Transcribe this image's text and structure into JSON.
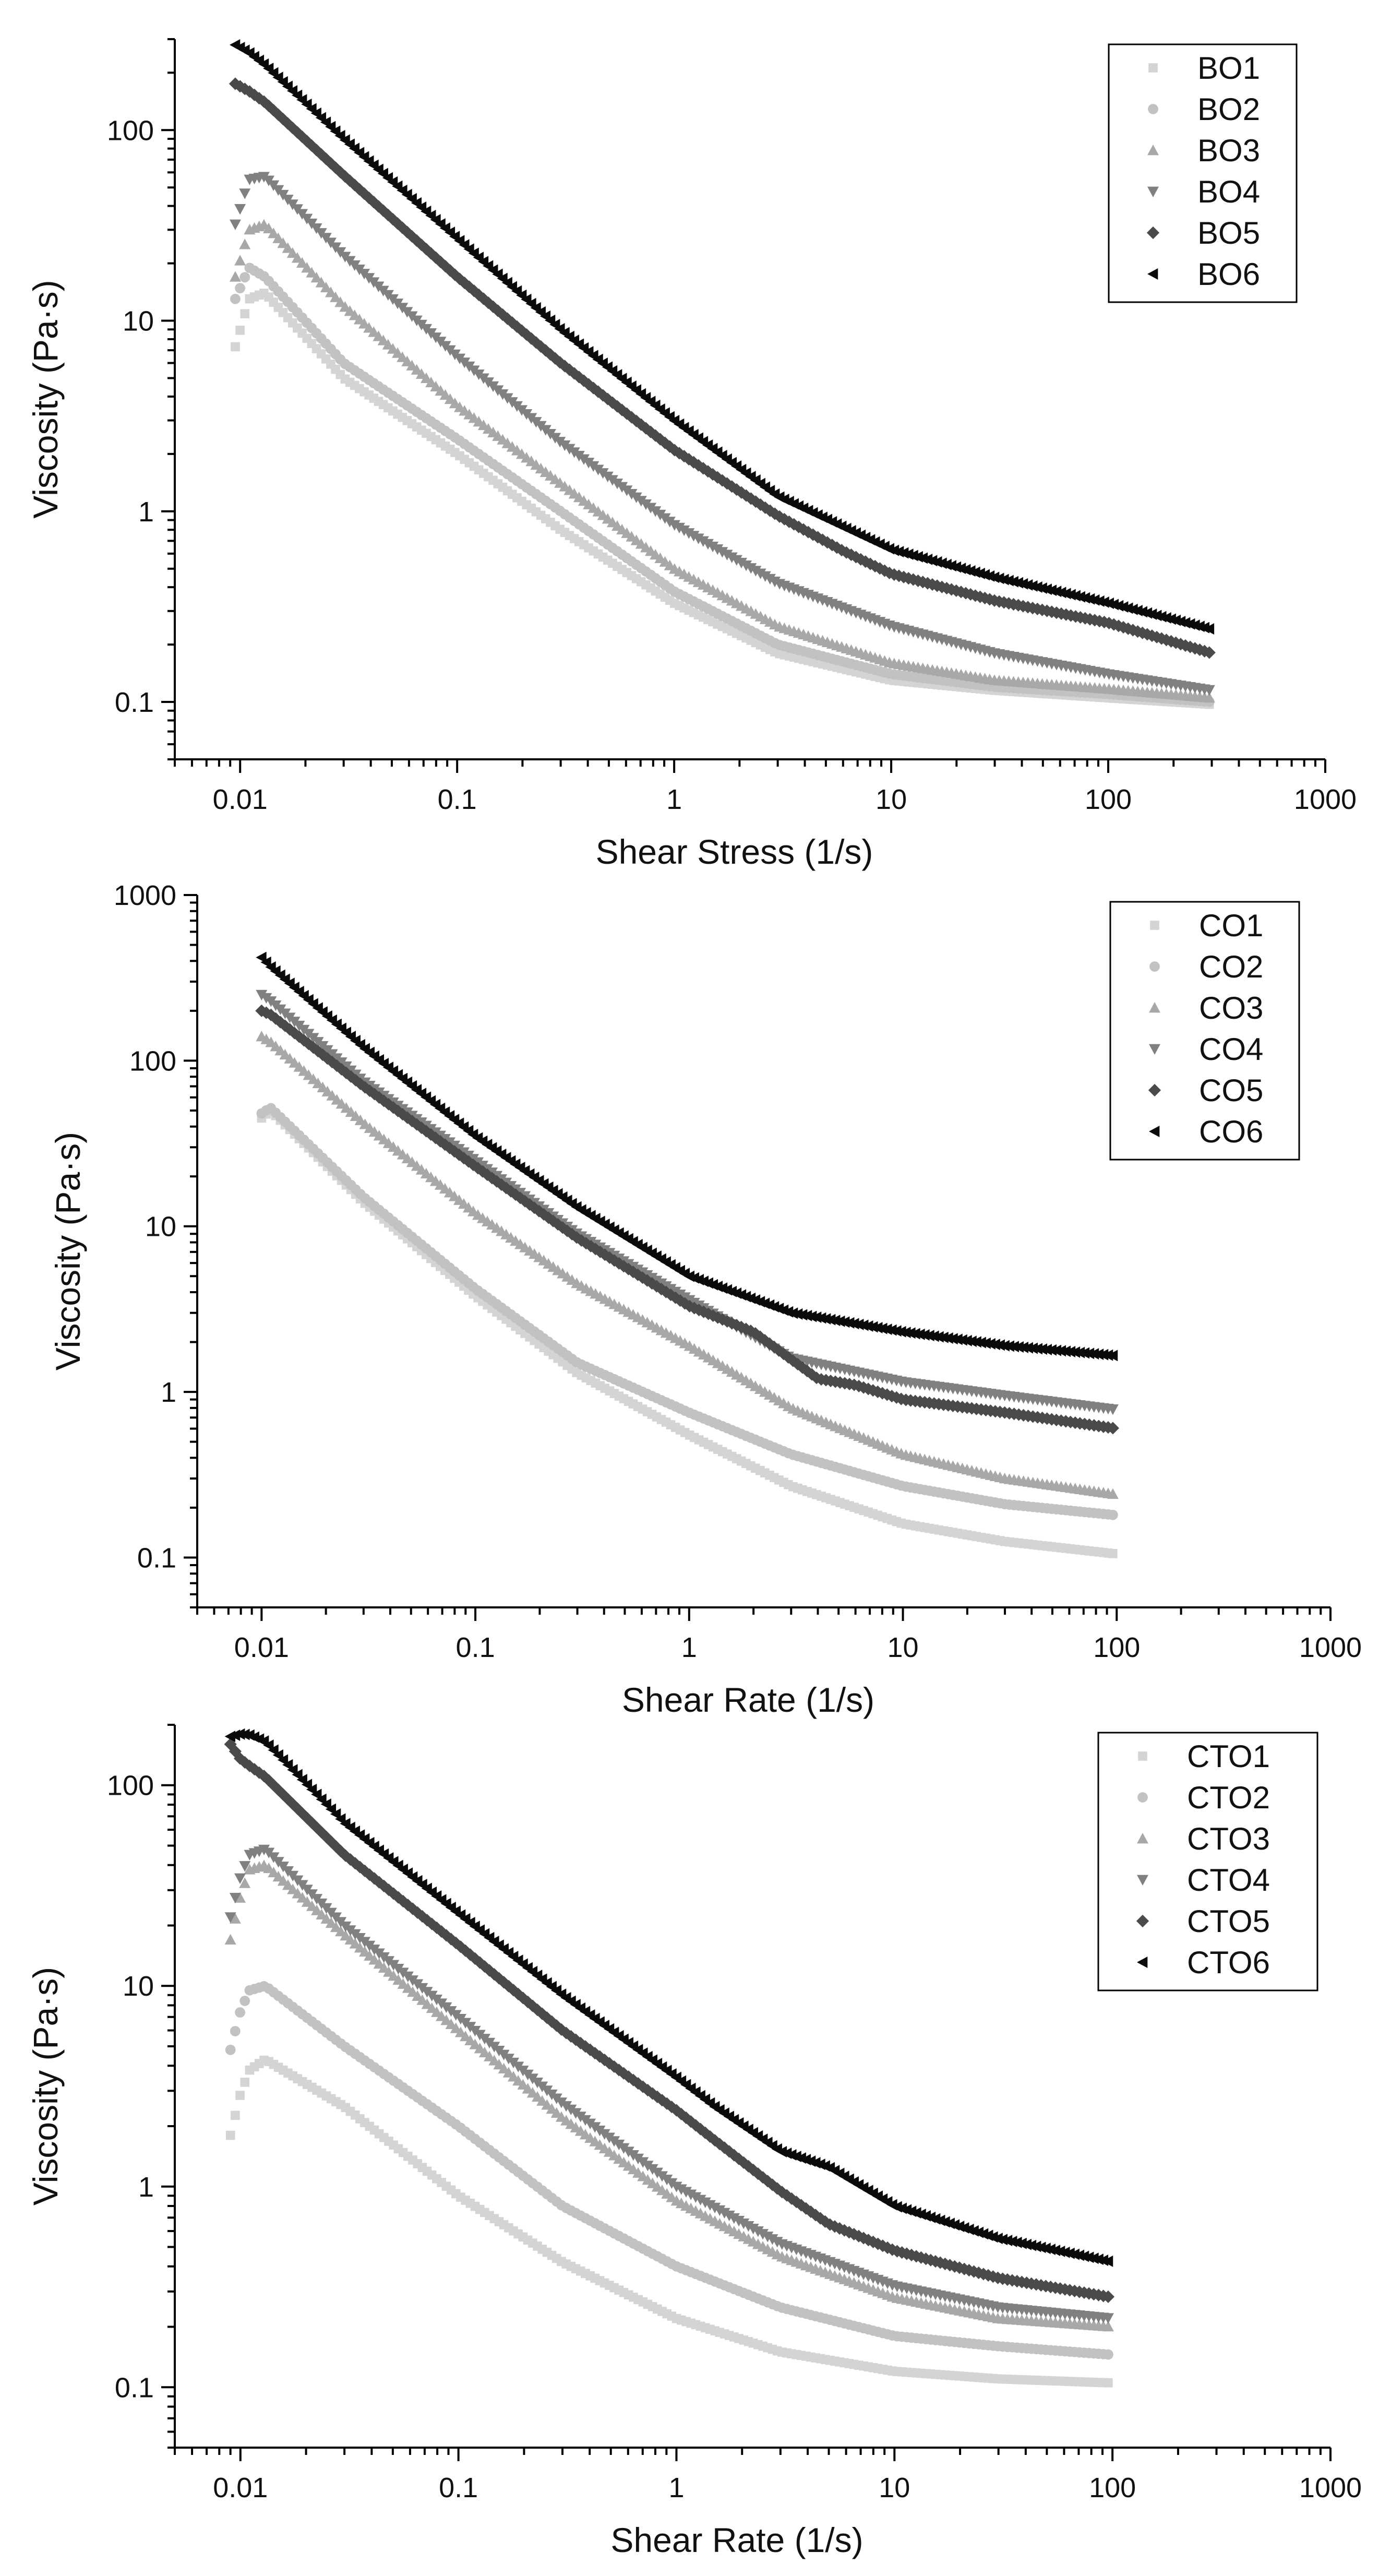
{
  "chart_data": [
    {
      "type": "scatter",
      "title": "",
      "xlabel": "Shear Stress (1/s)",
      "ylabel": "Viscosity (Pa·s)",
      "xscale": "log",
      "yscale": "log",
      "xlim": [
        0.005,
        1000
      ],
      "ylim": [
        0.05,
        300
      ],
      "xticks": [
        0.01,
        0.1,
        1,
        10,
        100,
        1000
      ],
      "xtick_labels": [
        "0.01",
        "0.1",
        "1",
        "10",
        "100",
        "1000"
      ],
      "yticks": [
        0.1,
        1,
        10,
        100
      ],
      "ytick_labels": [
        "0.1",
        "1",
        "10",
        "100"
      ],
      "legend_position": "top-right",
      "series": [
        {
          "name": "BO1",
          "marker": "square",
          "color": "#d4d4d4",
          "x": [
            0.0095,
            0.011,
            0.013,
            0.03,
            0.1,
            0.3,
            1,
            3,
            10,
            30,
            100,
            300
          ],
          "y": [
            7.3,
            13,
            14,
            5,
            2,
            0.8,
            0.33,
            0.18,
            0.13,
            0.115,
            0.105,
            0.097
          ]
        },
        {
          "name": "BO2",
          "marker": "circle",
          "color": "#c2c2c2",
          "x": [
            0.0095,
            0.011,
            0.013,
            0.03,
            0.1,
            0.3,
            1,
            3,
            10,
            30,
            100,
            300
          ],
          "y": [
            13,
            19,
            17,
            6,
            2.4,
            1.0,
            0.38,
            0.2,
            0.14,
            0.12,
            0.11,
            0.1
          ]
        },
        {
          "name": "BO3",
          "marker": "triangle-up",
          "color": "#a8a8a8",
          "x": [
            0.0095,
            0.011,
            0.013,
            0.03,
            0.1,
            0.3,
            1,
            3,
            10,
            30,
            100,
            300
          ],
          "y": [
            17,
            30,
            32,
            12,
            3.6,
            1.4,
            0.5,
            0.25,
            0.16,
            0.13,
            0.117,
            0.105
          ]
        },
        {
          "name": "BO4",
          "marker": "triangle-down",
          "color": "#808080",
          "x": [
            0.0095,
            0.011,
            0.013,
            0.03,
            0.1,
            0.3,
            1,
            3,
            10,
            30,
            100,
            300
          ],
          "y": [
            32,
            55,
            57,
            22,
            6.5,
            2.3,
            0.85,
            0.42,
            0.25,
            0.18,
            0.14,
            0.115
          ]
        },
        {
          "name": "BO5",
          "marker": "diamond",
          "color": "#4a4a4a",
          "x": [
            0.0095,
            0.011,
            0.013,
            0.03,
            0.1,
            0.3,
            1,
            3,
            6,
            10,
            30,
            100,
            300
          ],
          "y": [
            175,
            160,
            140,
            58,
            17,
            6,
            2.1,
            0.95,
            0.62,
            0.47,
            0.34,
            0.26,
            0.18
          ]
        },
        {
          "name": "BO6",
          "marker": "triangle-left",
          "color": "#0a0a0a",
          "x": [
            0.0095,
            0.011,
            0.013,
            0.03,
            0.1,
            0.3,
            1,
            3,
            10,
            30,
            100,
            300
          ],
          "y": [
            280,
            255,
            220,
            90,
            27,
            9,
            3,
            1.2,
            0.63,
            0.45,
            0.33,
            0.24
          ]
        }
      ]
    },
    {
      "type": "scatter",
      "title": "",
      "xlabel": "Shear Rate (1/s)",
      "ylabel": "Viscosity (Pa·s)",
      "xscale": "log",
      "yscale": "log",
      "xlim": [
        0.005,
        1000
      ],
      "ylim": [
        0.05,
        1000
      ],
      "xticks": [
        0.01,
        0.1,
        1,
        10,
        100,
        1000
      ],
      "xtick_labels": [
        "0.01",
        "0.1",
        "1",
        "10",
        "100",
        "1000"
      ],
      "yticks": [
        0.1,
        1,
        10,
        100,
        1000
      ],
      "ytick_labels": [
        "0.1",
        "1",
        "10",
        "100",
        "1000"
      ],
      "legend_position": "top-right",
      "series": [
        {
          "name": "CO1",
          "marker": "square",
          "color": "#d4d4d4",
          "x": [
            0.01,
            0.011,
            0.03,
            0.1,
            0.3,
            1,
            3,
            10,
            30,
            100
          ],
          "y": [
            45,
            50,
            14,
            3.8,
            1.3,
            0.55,
            0.27,
            0.16,
            0.125,
            0.105
          ]
        },
        {
          "name": "CO2",
          "marker": "circle",
          "color": "#c2c2c2",
          "x": [
            0.01,
            0.011,
            0.03,
            0.1,
            0.3,
            1,
            3,
            10,
            30,
            100
          ],
          "y": [
            48,
            52,
            15,
            4.2,
            1.5,
            0.75,
            0.42,
            0.27,
            0.21,
            0.18
          ]
        },
        {
          "name": "CO3",
          "marker": "triangle-up",
          "color": "#a8a8a8",
          "x": [
            0.01,
            0.011,
            0.03,
            0.1,
            0.3,
            1,
            3,
            10,
            30,
            100
          ],
          "y": [
            140,
            130,
            42,
            12,
            4.5,
            1.9,
            0.8,
            0.42,
            0.3,
            0.24
          ]
        },
        {
          "name": "CO4",
          "marker": "triangle-down",
          "color": "#808080",
          "x": [
            0.01,
            0.011,
            0.03,
            0.1,
            0.3,
            1,
            3,
            10,
            30,
            100
          ],
          "y": [
            250,
            230,
            75,
            25,
            9,
            3.6,
            1.6,
            1.15,
            0.95,
            0.78
          ]
        },
        {
          "name": "CO5",
          "marker": "diamond",
          "color": "#4a4a4a",
          "x": [
            0.01,
            0.011,
            0.03,
            0.1,
            0.3,
            1,
            2,
            4,
            6,
            10,
            30,
            100
          ],
          "y": [
            200,
            190,
            70,
            23,
            8.5,
            3.3,
            2.3,
            1.2,
            1.1,
            0.9,
            0.75,
            0.6
          ]
        },
        {
          "name": "CO6",
          "marker": "triangle-left",
          "color": "#0a0a0a",
          "x": [
            0.01,
            0.011,
            0.03,
            0.1,
            0.3,
            1,
            3,
            10,
            30,
            100
          ],
          "y": [
            420,
            370,
            120,
            35,
            13,
            5,
            3,
            2.3,
            1.9,
            1.65
          ]
        }
      ]
    },
    {
      "type": "scatter",
      "title": "",
      "xlabel": "Shear Rate (1/s)",
      "ylabel": "Viscosity (Pa·s)",
      "xscale": "log",
      "yscale": "log",
      "xlim": [
        0.005,
        1000
      ],
      "ylim": [
        0.05,
        200
      ],
      "xticks": [
        0.01,
        0.1,
        1,
        10,
        100,
        1000
      ],
      "xtick_labels": [
        "0.01",
        "0.1",
        "1",
        "10",
        "100",
        "1000"
      ],
      "yticks": [
        0.1,
        1,
        10,
        100
      ],
      "ytick_labels": [
        "0.1",
        "1",
        "10",
        "100"
      ],
      "legend_position": "top-right",
      "series": [
        {
          "name": "CTO1",
          "marker": "square",
          "color": "#d4d4d4",
          "x": [
            0.009,
            0.01,
            0.011,
            0.013,
            0.03,
            0.1,
            0.3,
            1,
            3,
            10,
            30,
            100
          ],
          "y": [
            1.8,
            2.9,
            3.8,
            4.3,
            2.5,
            0.9,
            0.42,
            0.22,
            0.15,
            0.12,
            0.11,
            0.105
          ]
        },
        {
          "name": "CTO2",
          "marker": "circle",
          "color": "#c2c2c2",
          "x": [
            0.009,
            0.01,
            0.011,
            0.013,
            0.03,
            0.1,
            0.3,
            1,
            3,
            10,
            30,
            100
          ],
          "y": [
            4.8,
            7.5,
            9.5,
            10,
            5,
            2,
            0.8,
            0.4,
            0.25,
            0.18,
            0.16,
            0.145
          ]
        },
        {
          "name": "CTO3",
          "marker": "triangle-up",
          "color": "#a8a8a8",
          "x": [
            0.009,
            0.01,
            0.011,
            0.013,
            0.03,
            0.1,
            0.3,
            1,
            3,
            10,
            30,
            100
          ],
          "y": [
            17,
            28,
            38,
            40,
            18,
            6,
            2.2,
            0.85,
            0.45,
            0.28,
            0.22,
            0.2
          ]
        },
        {
          "name": "CTO4",
          "marker": "triangle-down",
          "color": "#808080",
          "x": [
            0.009,
            0.01,
            0.011,
            0.013,
            0.03,
            0.1,
            0.3,
            1,
            3,
            10,
            30,
            100
          ],
          "y": [
            22,
            35,
            45,
            48,
            20,
            7,
            2.6,
            1.0,
            0.52,
            0.32,
            0.25,
            0.22
          ]
        },
        {
          "name": "CTO5",
          "marker": "diamond",
          "color": "#4a4a4a",
          "x": [
            0.009,
            0.01,
            0.011,
            0.013,
            0.03,
            0.1,
            0.3,
            1,
            1.5,
            3,
            5,
            10,
            30,
            100
          ],
          "y": [
            160,
            135,
            125,
            110,
            45,
            16,
            6,
            2.4,
            1.7,
            0.95,
            0.65,
            0.48,
            0.35,
            0.28
          ]
        },
        {
          "name": "CTO6",
          "marker": "triangle-left",
          "color": "#0a0a0a",
          "x": [
            0.009,
            0.01,
            0.011,
            0.013,
            0.03,
            0.1,
            0.3,
            1,
            1.5,
            3,
            5,
            10,
            30,
            100
          ],
          "y": [
            175,
            180,
            178,
            165,
            65,
            23,
            9,
            3.5,
            2.5,
            1.5,
            1.25,
            0.8,
            0.55,
            0.42
          ]
        }
      ]
    }
  ]
}
